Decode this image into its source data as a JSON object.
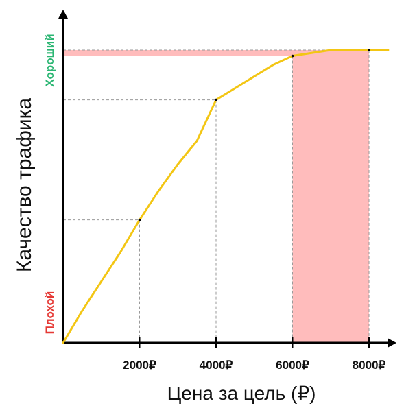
{
  "chart_data": {
    "type": "line",
    "xlabel": "Цена за цель (₽)",
    "ylabel": "Качество трафика",
    "x_ticks": [
      {
        "value": 2000,
        "label": "2000₽"
      },
      {
        "value": 4000,
        "label": "4000₽"
      },
      {
        "value": 6000,
        "label": "6000₽"
      },
      {
        "value": 8000,
        "label": "8000₽"
      }
    ],
    "y_labels": {
      "bottom": "Плохой",
      "top": "Хороший"
    },
    "xlim": [
      0,
      8600
    ],
    "ylim": [
      0,
      100
    ],
    "series": [
      {
        "x": [
          0,
          500,
          1000,
          1500,
          2000,
          2500,
          3000,
          3500,
          4000,
          4500,
          5000,
          5500,
          6000,
          6500,
          7000,
          7500,
          8000,
          8500
        ],
        "values": [
          0,
          11,
          21,
          31,
          42,
          52,
          61,
          69,
          83,
          87,
          91,
          95,
          98,
          99,
          100,
          100,
          100,
          100
        ]
      }
    ],
    "markers": [
      {
        "x": 2000,
        "y": 42
      },
      {
        "x": 4000,
        "y": 83
      },
      {
        "x": 6000,
        "y": 98
      },
      {
        "x": 8000,
        "y": 100
      }
    ],
    "highlight": {
      "x_range": [
        6000,
        8000
      ],
      "y_range": [
        98,
        100
      ]
    },
    "colors": {
      "curve": "#f3c614",
      "highlight": "#ffbcbc",
      "highlight_edge": "#d96a6a",
      "guide": "#9a9a9a",
      "axis": "#000000"
    }
  }
}
